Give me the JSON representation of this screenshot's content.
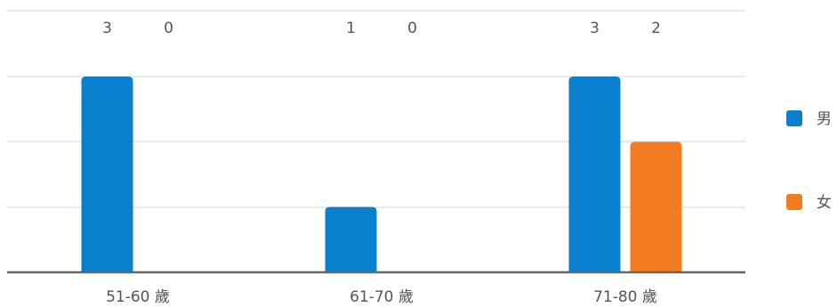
{
  "chart_data": {
    "type": "bar",
    "categories": [
      "51-60 歲",
      "61-70 歲",
      "71-80 歲"
    ],
    "series": [
      {
        "name": "男",
        "values": [
          3,
          1,
          3
        ],
        "color": "#0a7fce"
      },
      {
        "name": "女",
        "values": [
          0,
          0,
          2
        ],
        "color": "#f47c20"
      }
    ],
    "ylim": [
      0,
      3
    ],
    "grid": true,
    "data_labels": "top",
    "legend": "right"
  }
}
